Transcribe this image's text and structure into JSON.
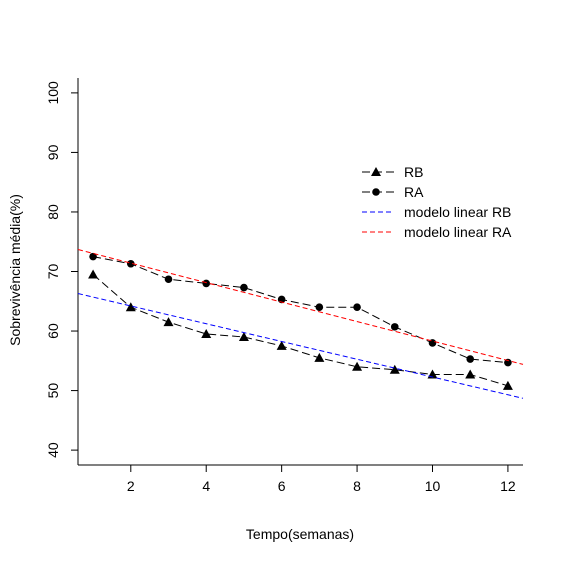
{
  "chart_data": {
    "type": "line",
    "xlabel": "Tempo(semanas)",
    "ylabel": "Sobrevivência média(%)",
    "xlim": [
      0.6,
      12.4
    ],
    "ylim": [
      37.5,
      102.5
    ],
    "x_ticks": [
      2,
      4,
      6,
      8,
      10,
      12
    ],
    "y_ticks": [
      40,
      50,
      60,
      70,
      80,
      90,
      100
    ],
    "grid": false,
    "legend_position": "top-right",
    "series": [
      {
        "name": "RB",
        "kind": "observed",
        "marker": "triangle",
        "line_style": "dashed",
        "color": "#000000",
        "x": [
          1,
          2,
          3,
          4,
          5,
          6,
          7,
          8,
          9,
          10,
          11,
          12
        ],
        "y": [
          69.5,
          64.0,
          61.5,
          59.5,
          59.0,
          57.5,
          55.5,
          54.0,
          53.5,
          52.7,
          52.7,
          50.8
        ]
      },
      {
        "name": "RA",
        "kind": "observed",
        "marker": "circle",
        "line_style": "dashed",
        "color": "#000000",
        "x": [
          1,
          2,
          3,
          4,
          5,
          6,
          7,
          8,
          9,
          10,
          11,
          12
        ],
        "y": [
          72.5,
          71.3,
          68.7,
          68.0,
          67.3,
          65.3,
          64.0,
          64.0,
          60.7,
          58.0,
          55.3,
          54.7
        ]
      },
      {
        "name": "modelo linear RB",
        "kind": "fit",
        "line_style": "dashed",
        "color": "#0000ff",
        "x": [
          0.6,
          12.4
        ],
        "y": [
          66.3,
          48.7
        ]
      },
      {
        "name": "modelo linear RA",
        "kind": "fit",
        "line_style": "dashed",
        "color": "#ff0000",
        "x": [
          0.6,
          12.4
        ],
        "y": [
          73.7,
          54.4
        ]
      }
    ]
  }
}
